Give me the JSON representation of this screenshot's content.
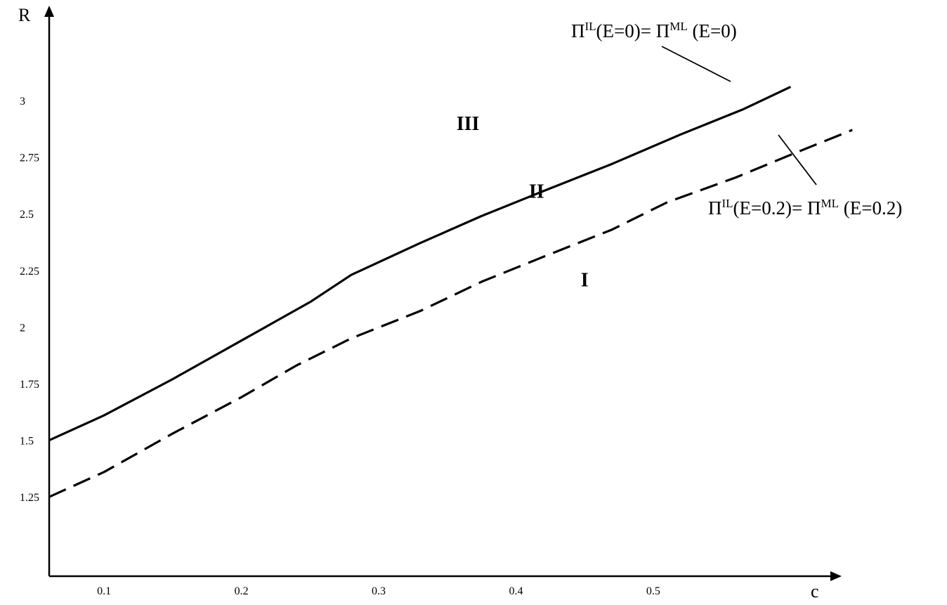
{
  "chart_data": {
    "type": "line",
    "xlabel": "c",
    "ylabel": "R",
    "xticks": [
      0.1,
      0.2,
      0.3,
      0.4,
      0.5
    ],
    "yticks": [
      1.25,
      1.5,
      1.75,
      2,
      2.25,
      2.5,
      2.75,
      3
    ],
    "xlim": [
      0.06,
      0.63
    ],
    "ylim": [
      0.9,
      3.4
    ],
    "grid": false,
    "series": [
      {
        "label_parts": [
          "Π",
          "IL",
          "(E=0)= Π",
          "ML",
          " (E=0)"
        ],
        "style": "solid",
        "x": [
          0.06,
          0.1,
          0.15,
          0.2,
          0.25,
          0.28,
          0.33,
          0.375,
          0.42,
          0.47,
          0.52,
          0.565,
          0.6
        ],
        "y": [
          1.5,
          1.61,
          1.77,
          1.94,
          2.11,
          2.23,
          2.37,
          2.49,
          2.6,
          2.72,
          2.85,
          2.96,
          3.06
        ]
      },
      {
        "label_parts": [
          "Π",
          "IL",
          "(E=0.2)= Π",
          "ML",
          " (E=0.2)"
        ],
        "style": "dashed",
        "x": [
          0.06,
          0.1,
          0.15,
          0.2,
          0.24,
          0.28,
          0.33,
          0.375,
          0.42,
          0.47,
          0.51,
          0.56,
          0.6,
          0.645
        ],
        "y": [
          1.25,
          1.36,
          1.53,
          1.69,
          1.83,
          1.95,
          2.07,
          2.2,
          2.31,
          2.43,
          2.55,
          2.66,
          2.76,
          2.87
        ]
      }
    ],
    "regions": [
      {
        "label": "III",
        "x": 0.365,
        "y": 2.87
      },
      {
        "label": "II",
        "x": 0.415,
        "y": 2.57
      },
      {
        "label": "I",
        "x": 0.45,
        "y": 2.18
      }
    ]
  }
}
